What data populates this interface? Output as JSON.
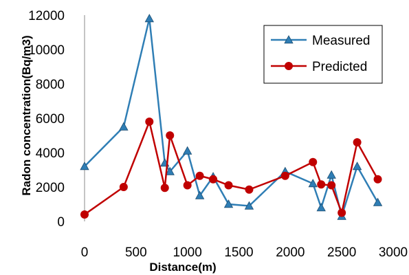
{
  "chart_data": {
    "type": "line",
    "xlabel": "Distance(m)",
    "ylabel": "Radon concentration(Bq/m3)",
    "xlim": [
      0,
      3000
    ],
    "ylim": [
      0,
      12000
    ],
    "x_ticks": [
      0,
      500,
      1000,
      1500,
      2000,
      2500,
      3000
    ],
    "y_ticks": [
      0,
      2000,
      4000,
      6000,
      8000,
      10000,
      12000
    ],
    "grid": false,
    "legend_position": "top-right",
    "series": [
      {
        "name": "Measured",
        "color": "#2F7EB5",
        "marker": "triangle",
        "points": [
          [
            0,
            3200
          ],
          [
            380,
            5500
          ],
          [
            630,
            11800
          ],
          [
            780,
            3400
          ],
          [
            830,
            2900
          ],
          [
            1000,
            4100
          ],
          [
            1120,
            1500
          ],
          [
            1250,
            2600
          ],
          [
            1400,
            1000
          ],
          [
            1600,
            900
          ],
          [
            1950,
            2900
          ],
          [
            2220,
            2200
          ],
          [
            2300,
            800
          ],
          [
            2400,
            2700
          ],
          [
            2500,
            300
          ],
          [
            2650,
            3200
          ],
          [
            2850,
            1100
          ]
        ]
      },
      {
        "name": "Predicted",
        "color": "#C00000",
        "marker": "circle",
        "points": [
          [
            0,
            400
          ],
          [
            380,
            2000
          ],
          [
            630,
            5800
          ],
          [
            780,
            1950
          ],
          [
            830,
            5000
          ],
          [
            1000,
            2100
          ],
          [
            1120,
            2650
          ],
          [
            1250,
            2450
          ],
          [
            1400,
            2100
          ],
          [
            1600,
            1850
          ],
          [
            1950,
            2650
          ],
          [
            2220,
            3450
          ],
          [
            2300,
            2150
          ],
          [
            2400,
            2100
          ],
          [
            2500,
            500
          ],
          [
            2650,
            4600
          ],
          [
            2850,
            2450
          ]
        ]
      }
    ]
  }
}
